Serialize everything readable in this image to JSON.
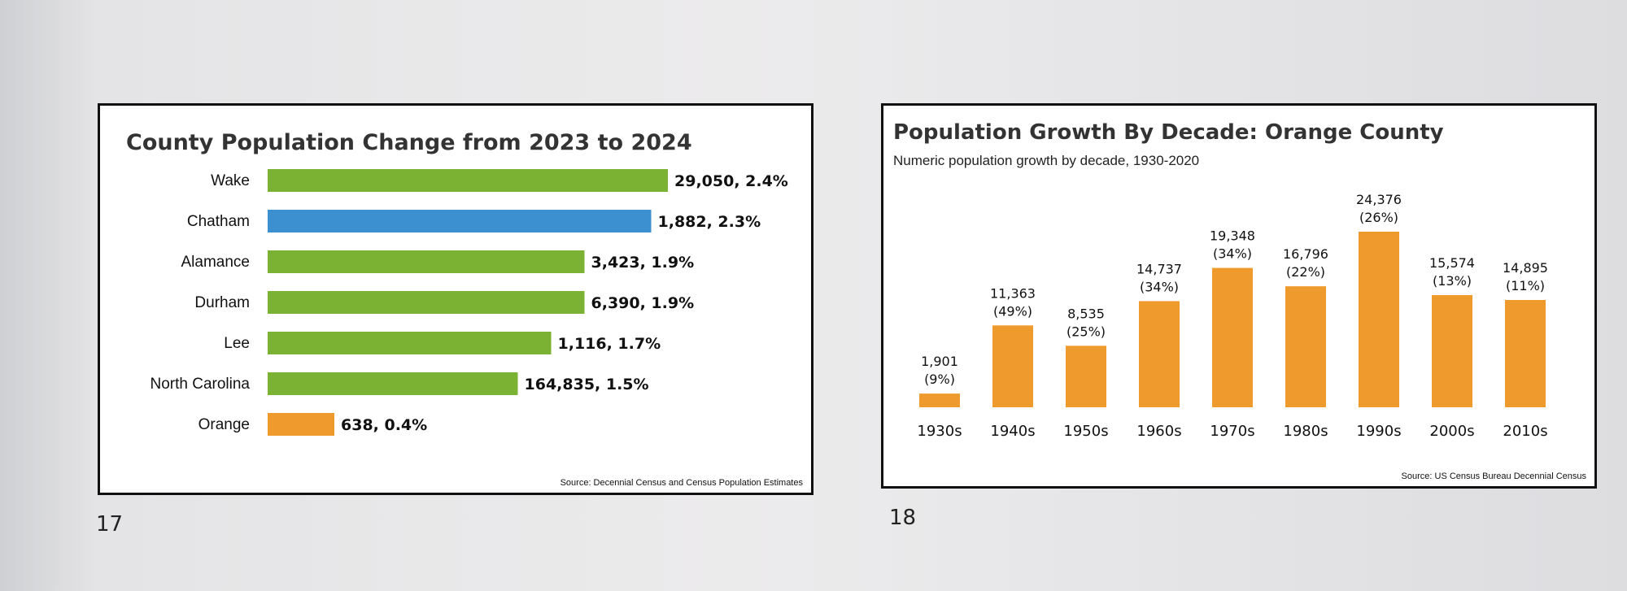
{
  "page_numbers": {
    "left": "17",
    "right": "18"
  },
  "chart_data": [
    {
      "type": "bar",
      "orientation": "horizontal",
      "title": "County Population Change from 2023 to 2024",
      "source": "Source: Decennial Census and Census Population Estimates",
      "categories": [
        "Wake",
        "Chatham",
        "Alamance",
        "Durham",
        "Lee",
        "North Carolina",
        "Orange"
      ],
      "values": [
        2.4,
        2.3,
        1.9,
        1.9,
        1.7,
        1.5,
        0.4
      ],
      "data_labels": [
        "29,050, 2.4%",
        "1,882, 2.3%",
        "3,423, 1.9%",
        "6,390, 1.9%",
        "1,116, 1.7%",
        "164,835, 1.5%",
        "638, 0.4%"
      ],
      "numeric_change": [
        29050,
        1882,
        3423,
        6390,
        1116,
        164835,
        638
      ],
      "bar_colors": [
        "#7cb233",
        "#3d90d0",
        "#7cb233",
        "#7cb233",
        "#7cb233",
        "#7cb233",
        "#ef9a2c"
      ],
      "xlim": [
        0,
        2.4
      ],
      "grid": false,
      "legend": "none"
    },
    {
      "type": "bar",
      "orientation": "vertical",
      "title": "Population Growth By Decade: Orange County",
      "subtitle": "Numeric population growth by decade, 1930-2020",
      "source": "Source: US Census Bureau Decennial Census",
      "categories": [
        "1930s",
        "1940s",
        "1950s",
        "1960s",
        "1970s",
        "1980s",
        "1990s",
        "2000s",
        "2010s"
      ],
      "values": [
        1901,
        11363,
        8535,
        14737,
        19348,
        16796,
        24376,
        15574,
        14895
      ],
      "value_labels": [
        "1,901",
        "11,363",
        "8,535",
        "14,737",
        "19,348",
        "16,796",
        "24,376",
        "15,574",
        "14,895"
      ],
      "percent_labels": [
        "(9%)",
        "(49%)",
        "(25%)",
        "(34%)",
        "(34%)",
        "(22%)",
        "(26%)",
        "(13%)",
        "(11%)"
      ],
      "bar_color": "#ef9a2c",
      "ylim": [
        0,
        24376
      ],
      "grid": false,
      "legend": "none"
    }
  ]
}
